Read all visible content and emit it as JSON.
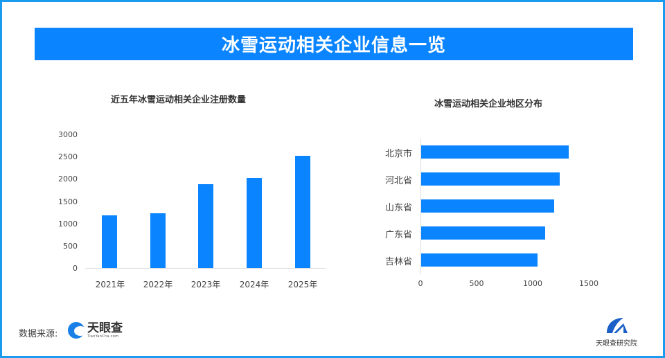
{
  "banner": {
    "title": "冰雪运动相关企业信息一览"
  },
  "colors": {
    "accent": "#0a85ff",
    "frame": "#1a9bf0",
    "title_text": "#ffffff"
  },
  "footer": {
    "source_label": "数据来源:",
    "source_logo_cn": "天眼查",
    "source_logo_en": "TianYanCha.com",
    "institute_name": "天眼查研究院"
  },
  "chart_data": [
    {
      "type": "bar",
      "title": "近五年冰雪运动相关企业注册数量",
      "categories": [
        "2021年",
        "2022年",
        "2023年",
        "2024年",
        "2025年"
      ],
      "values": [
        1180,
        1230,
        1880,
        2020,
        2520
      ],
      "xlabel": "",
      "ylabel": "",
      "ylim": [
        0,
        3000
      ],
      "yticks": [
        "0",
        "500",
        "1000",
        "1500",
        "2000",
        "2500",
        "3000"
      ],
      "grid": false,
      "legend": "none"
    },
    {
      "type": "bar",
      "orientation": "horizontal",
      "title": "冰雪运动相关企业地区分布",
      "categories": [
        "北京市",
        "河北省",
        "山东省",
        "广东省",
        "吉林省"
      ],
      "values": [
        1320,
        1240,
        1190,
        1110,
        1040
      ],
      "xlabel": "",
      "ylabel": "",
      "xlim": [
        0,
        1500
      ],
      "xticks": [
        "0",
        "500",
        "1000",
        "1500"
      ],
      "grid": false,
      "legend": "none"
    }
  ]
}
